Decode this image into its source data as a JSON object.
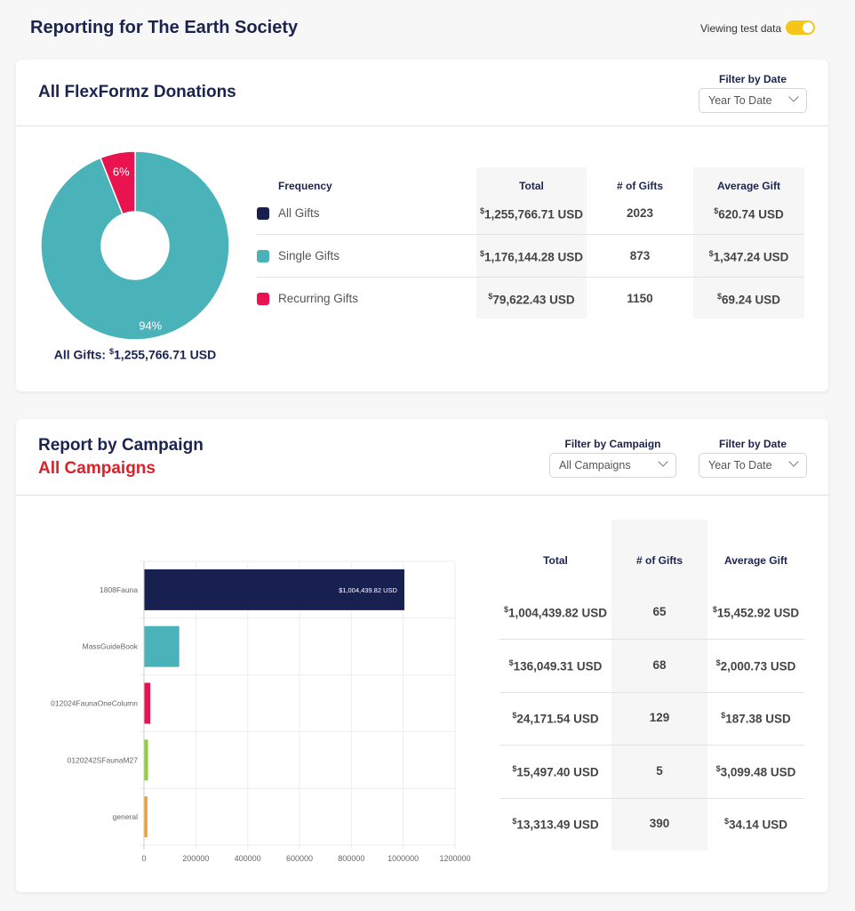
{
  "header": {
    "title": "Reporting for The Earth Society",
    "test_label": "Viewing test data",
    "test_toggle_on": true
  },
  "donations": {
    "title": "All FlexFormz Donations",
    "filter_label": "Filter by Date",
    "filter_value": "Year To Date",
    "donut": {
      "slices": [
        {
          "label": "94%",
          "value": 94,
          "color": "#4ab3ba"
        },
        {
          "label": "6%",
          "value": 6,
          "color": "#e8134f"
        }
      ],
      "caption_prefix": "All Gifts: ",
      "caption_value": "1,255,766.71 USD",
      "currency": "$"
    },
    "columns": [
      "Frequency",
      "Total",
      "# of Gifts",
      "Average Gift"
    ],
    "rows": [
      {
        "label": "All Gifts",
        "color": "#17204e",
        "total": "1,255,766.71 USD",
        "gifts": "2023",
        "avg": "620.74 USD"
      },
      {
        "label": "Single Gifts",
        "color": "#4ab3ba",
        "total": "1,176,144.28 USD",
        "gifts": "873",
        "avg": "1,347.24 USD"
      },
      {
        "label": "Recurring Gifts",
        "color": "#e8134f",
        "total": "79,622.43 USD",
        "gifts": "1150",
        "avg": "69.24 USD"
      }
    ]
  },
  "campaigns": {
    "title": "Report by Campaign",
    "subtitle": "All Campaigns",
    "campaign_filter_label": "Filter by Campaign",
    "campaign_filter_value": "All Campaigns",
    "date_filter_label": "Filter by Date",
    "date_filter_value": "Year To Date",
    "columns": [
      "Total",
      "# of Gifts",
      "Average Gift"
    ],
    "rows": [
      {
        "total": "1,004,439.82 USD",
        "gifts": "65",
        "avg": "15,452.92 USD"
      },
      {
        "total": "136,049.31 USD",
        "gifts": "68",
        "avg": "2,000.73 USD"
      },
      {
        "total": "24,171.54 USD",
        "gifts": "129",
        "avg": "187.38 USD"
      },
      {
        "total": "15,497.40 USD",
        "gifts": "5",
        "avg": "3,099.48 USD"
      },
      {
        "total": "13,313.49 USD",
        "gifts": "390",
        "avg": "34.14 USD"
      }
    ]
  },
  "chart_data": {
    "type": "bar",
    "orientation": "horizontal",
    "categories": [
      "1808Fauna",
      "MassGuideBook",
      "012024FaunaOneColumn",
      "0120242SFaunaM27",
      "general"
    ],
    "values": [
      1004439.82,
      136049.31,
      24171.54,
      15497.4,
      13313.49
    ],
    "colors": [
      "#17204e",
      "#4ab3ba",
      "#e8134f",
      "#8fcf3c",
      "#f0a030"
    ],
    "data_labels": [
      "$1,004,439.82 USD",
      "",
      "",
      "",
      ""
    ],
    "xlim": [
      0,
      1200000
    ],
    "xticks": [
      "0",
      "200000",
      "400000",
      "600000",
      "800000",
      "1000000",
      "1200000"
    ],
    "grid": true
  }
}
